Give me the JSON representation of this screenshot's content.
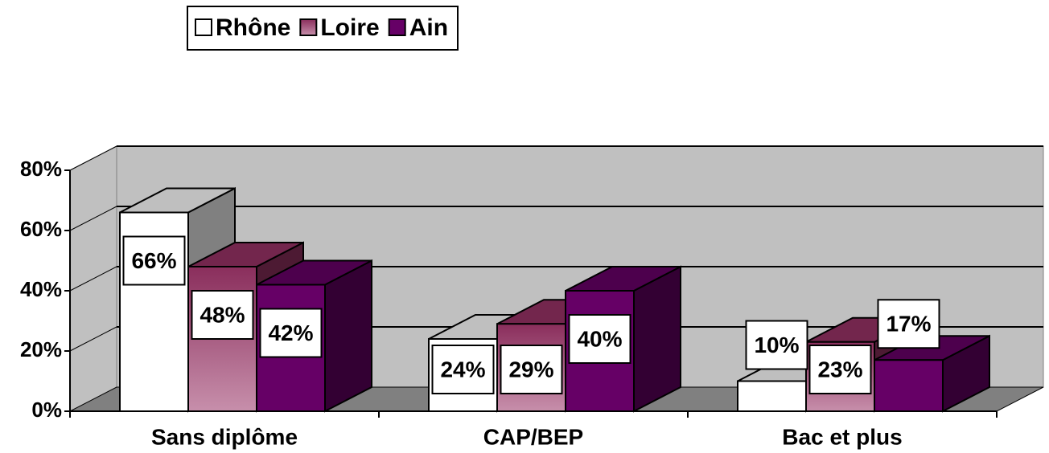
{
  "chart_data": {
    "type": "bar3d",
    "categories": [
      "Sans diplôme",
      "CAP/BEP",
      "Bac et plus"
    ],
    "series": [
      {
        "name": "Rhône",
        "color": "#ffffff",
        "values": [
          66,
          24,
          10
        ],
        "value_labels": [
          "66%",
          "24%",
          "10%"
        ]
      },
      {
        "name": "Loire",
        "color": "#993366",
        "gradient": true,
        "values": [
          48,
          29,
          23
        ],
        "value_labels": [
          "48%",
          "29%",
          "23%"
        ]
      },
      {
        "name": "Ain",
        "color": "#660066",
        "values": [
          42,
          40,
          17
        ],
        "value_labels": [
          "42%",
          "40%",
          "17%"
        ]
      }
    ],
    "ylim": [
      0,
      80
    ],
    "yticks": [
      {
        "value": 0,
        "label": "0%"
      },
      {
        "value": 20,
        "label": "20%"
      },
      {
        "value": 40,
        "label": "40%"
      },
      {
        "value": 60,
        "label": "60%"
      },
      {
        "value": 80,
        "label": "80%"
      }
    ],
    "grid": true,
    "legend": "top"
  }
}
